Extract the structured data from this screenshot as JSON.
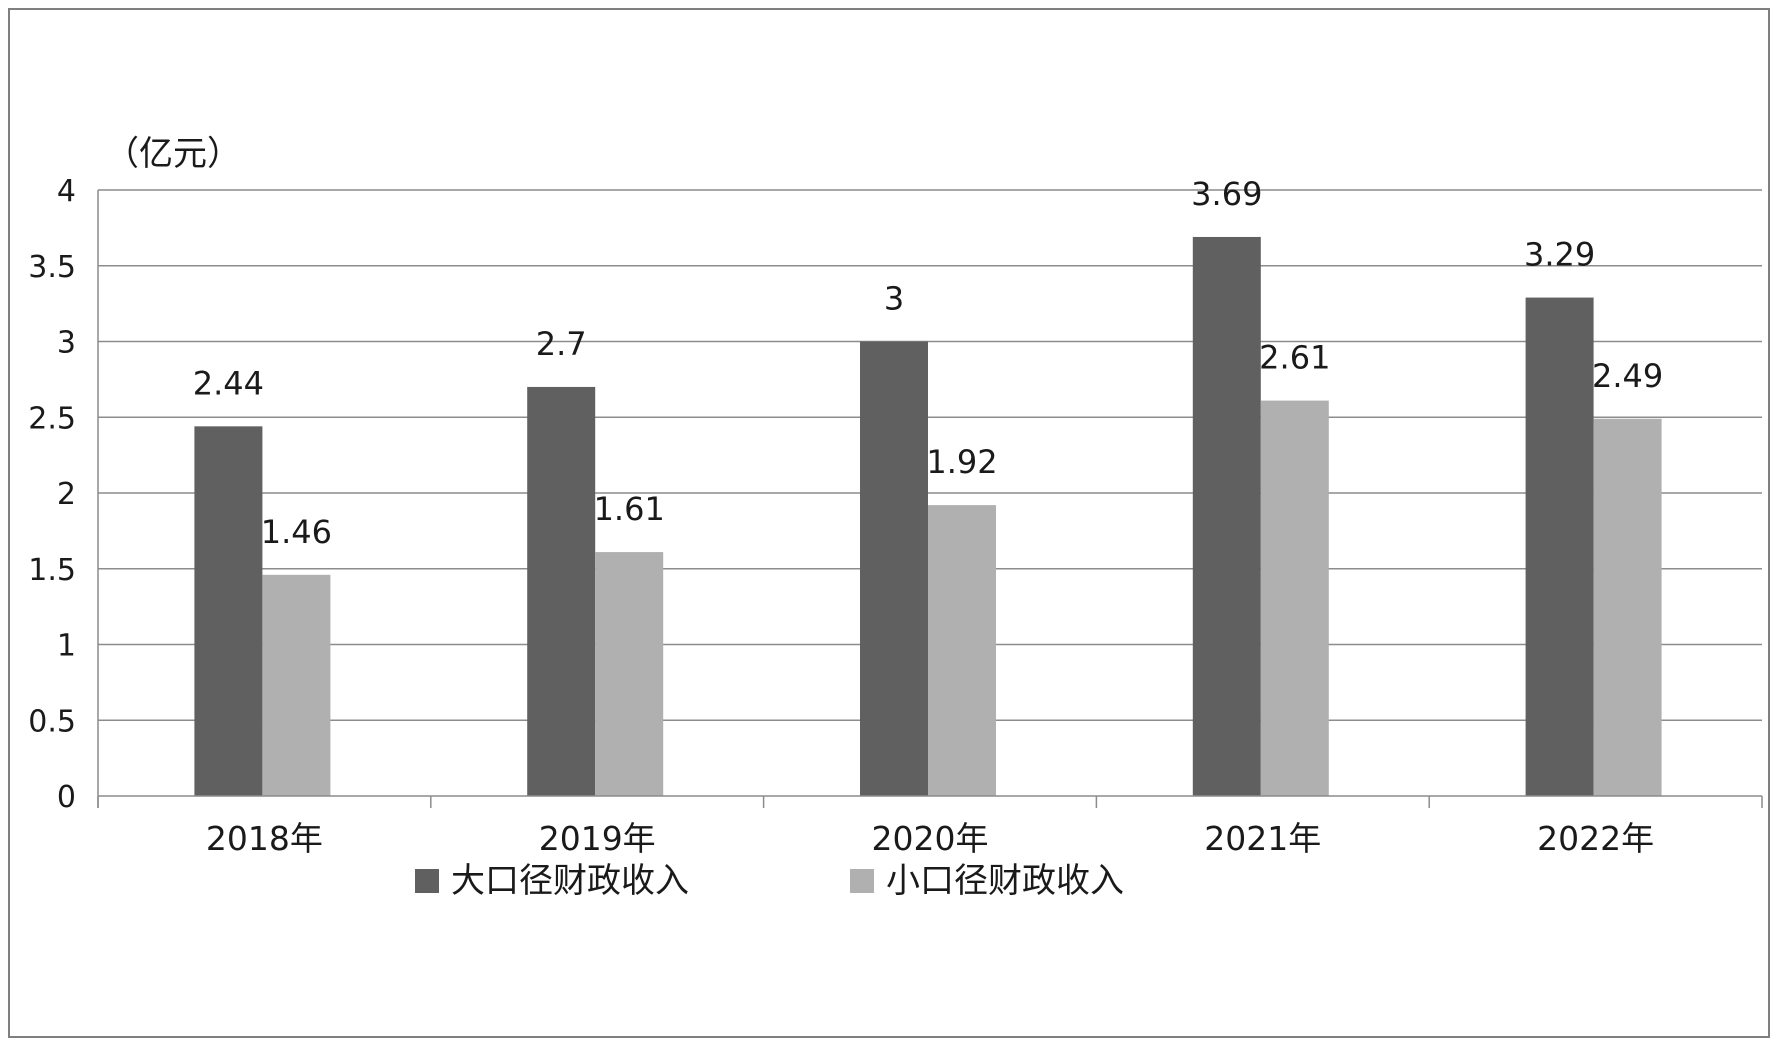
{
  "chart_data": {
    "type": "bar",
    "unit": "（亿元）",
    "categories": [
      "2018年",
      "2019年",
      "2020年",
      "2021年",
      "2022年"
    ],
    "series": [
      {
        "name": "大口径财政收入",
        "values": [
          2.44,
          2.7,
          3,
          3.69,
          3.29
        ],
        "labels": [
          "2.44",
          "2.7",
          "3",
          "3.69",
          "3.29"
        ],
        "color": "#606060"
      },
      {
        "name": "小口径财政收入",
        "values": [
          1.46,
          1.61,
          1.92,
          2.61,
          2.49
        ],
        "labels": [
          "1.46",
          "1.61",
          "1.92",
          "2.61",
          "2.49"
        ],
        "color": "#b0b0b0"
      }
    ],
    "ylim": [
      0,
      4
    ],
    "yticks": [
      "0",
      "0.5",
      "1",
      "1.5",
      "2",
      "2.5",
      "3",
      "3.5",
      "4"
    ],
    "grid": true,
    "legend": "bottom"
  }
}
